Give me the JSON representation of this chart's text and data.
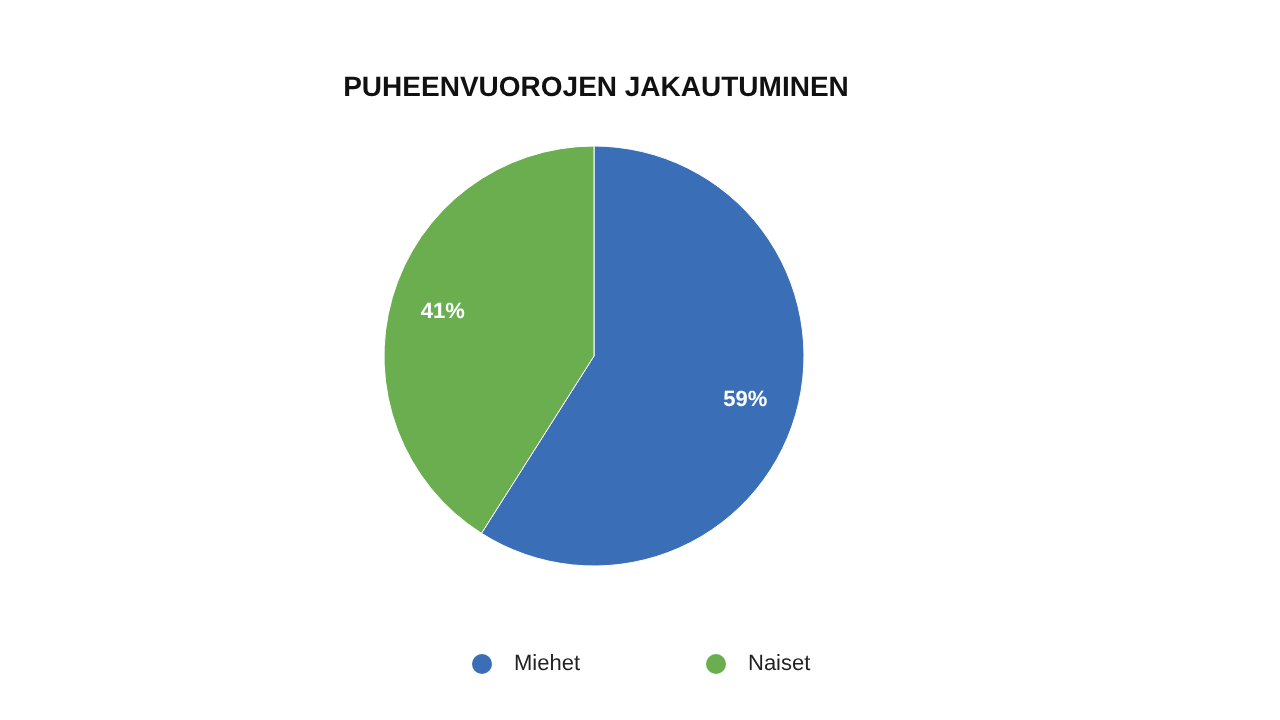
{
  "chart_data": {
    "type": "pie",
    "title": "PUHEENVUOROJEN JAKAUTUMINEN",
    "categories": [
      "Miehet",
      "Naiset"
    ],
    "values": [
      59,
      41
    ],
    "colors": [
      "#3a6fb8",
      "#6aae4f"
    ],
    "value_labels": [
      "59%",
      "41%"
    ],
    "legend": "bottom"
  }
}
